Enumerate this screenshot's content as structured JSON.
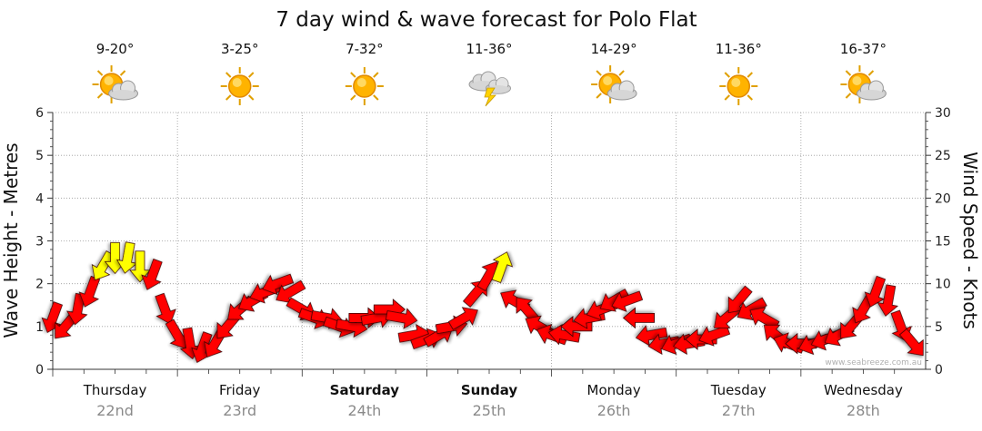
{
  "chart_data": {
    "type": "line",
    "title": "7 day wind & wave forecast for Polo Flat",
    "ylabel_left": "Wave Height - Metres",
    "ylabel_right": "Wind Speed - Knots",
    "ylim_left": [
      0,
      6
    ],
    "ylim_right": [
      0,
      30
    ],
    "yticks_left": [
      "0",
      "1",
      "2",
      "3",
      "4",
      "5",
      "6"
    ],
    "yticks_right": [
      "0",
      "5",
      "10",
      "15",
      "20",
      "25",
      "30"
    ],
    "grid": true,
    "watermark": "www.seabreeze.com.au",
    "days": [
      {
        "name": "Thursday",
        "date": "22nd",
        "bold": false,
        "temp": "9-20°",
        "icon": "partly-cloudy-icon"
      },
      {
        "name": "Friday",
        "date": "23rd",
        "bold": false,
        "temp": "3-25°",
        "icon": "sunny-icon"
      },
      {
        "name": "Saturday",
        "date": "24th",
        "bold": true,
        "temp": "7-32°",
        "icon": "sunny-icon"
      },
      {
        "name": "Sunday",
        "date": "25th",
        "bold": true,
        "temp": "11-36°",
        "icon": "thunderstorm-icon"
      },
      {
        "name": "Monday",
        "date": "26th",
        "bold": false,
        "temp": "14-29°",
        "icon": "partly-cloudy-icon"
      },
      {
        "name": "Tuesday",
        "date": "27th",
        "bold": false,
        "temp": "11-36°",
        "icon": "sunny-icon"
      },
      {
        "name": "Wednesday",
        "date": "28th",
        "bold": false,
        "temp": "16-37°",
        "icon": "partly-cloudy-icon"
      }
    ],
    "series": [
      {
        "x": [
          0,
          0.1,
          0.2,
          0.3,
          0.4,
          0.5,
          0.6,
          0.7,
          0.8,
          0.9,
          1,
          1.1,
          1.2,
          1.3,
          1.4,
          1.5,
          1.6,
          1.7,
          1.8,
          1.9,
          2,
          2.1,
          2.2,
          2.3,
          2.4,
          2.5,
          2.6,
          2.7,
          2.8,
          2.9,
          3,
          3.1,
          3.2,
          3.3,
          3.4,
          3.5,
          3.6,
          3.7,
          3.8,
          3.9,
          4,
          4.1,
          4.2,
          4.3,
          4.4,
          4.5,
          4.6,
          4.7,
          4.8,
          4.9,
          5,
          5.1,
          5.2,
          5.3,
          5.4,
          5.5,
          5.6,
          5.7,
          5.8,
          5.9,
          6,
          6.1,
          6.2,
          6.3,
          6.4,
          6.5,
          6.6,
          6.7,
          6.8,
          6.9
        ],
        "knots": [
          6,
          5,
          7,
          9,
          12,
          13,
          13,
          12,
          11,
          7,
          4,
          3,
          2.5,
          3,
          5,
          7,
          8,
          9,
          10,
          9,
          7,
          6,
          6,
          5,
          5,
          6,
          6,
          7,
          6,
          4,
          3.5,
          4,
          5,
          6,
          9,
          11,
          12,
          8,
          7,
          5,
          4,
          4,
          5,
          6,
          7,
          8,
          8,
          6,
          4,
          3,
          3,
          3,
          3.5,
          4,
          6,
          8,
          7,
          6,
          4,
          3,
          3,
          3,
          3.5,
          4,
          5,
          7,
          9,
          8,
          5,
          3
        ],
        "wave_m": [
          1.2,
          1.0,
          1.4,
          1.8,
          2.3,
          2.5,
          2.5,
          2.4,
          2.2,
          1.6,
          1.0,
          0.7,
          0.6,
          0.7,
          0.9,
          1.2,
          1.4,
          1.6,
          1.7,
          1.6,
          1.4,
          1.2,
          1.2,
          1.1,
          1.1,
          1.1,
          1.2,
          1.2,
          1.1,
          0.9,
          0.8,
          0.8,
          0.9,
          1.1,
          1.5,
          1.9,
          2.1,
          1.5,
          1.3,
          1.0,
          0.9,
          0.9,
          1.0,
          1.1,
          1.3,
          1.5,
          1.5,
          1.2,
          0.9,
          0.8,
          0.8,
          0.8,
          0.8,
          0.8,
          1.1,
          1.4,
          1.3,
          1.1,
          0.9,
          0.8,
          0.8,
          0.8,
          0.8,
          0.9,
          1.0,
          1.3,
          1.7,
          1.6,
          1.1,
          0.7
        ],
        "direction_deg": [
          200,
          220,
          190,
          200,
          210,
          180,
          190,
          180,
          200,
          160,
          150,
          170,
          200,
          210,
          220,
          230,
          240,
          250,
          250,
          240,
          120,
          110,
          100,
          110,
          100,
          90,
          80,
          90,
          100,
          80,
          70,
          60,
          80,
          60,
          40,
          30,
          20,
          300,
          320,
          300,
          290,
          280,
          270,
          260,
          250,
          240,
          250,
          270,
          260,
          260,
          250,
          260,
          270,
          250,
          230,
          220,
          240,
          300,
          310,
          290,
          270,
          250,
          250,
          240,
          220,
          210,
          200,
          190,
          160,
          140
        ]
      }
    ]
  }
}
